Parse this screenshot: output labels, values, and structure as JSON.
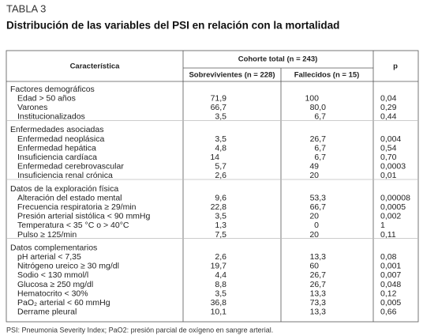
{
  "header": {
    "label": "TABLA 3",
    "title": "Distribución de las variables del PSI en relación con la mortalidad"
  },
  "table": {
    "columns": {
      "characteristic": "Característica",
      "cohort": "Cohorte total (n = 243)",
      "survivors": "Sobrevivientes (n = 228)",
      "deceased": "Fallecidos (n = 15)",
      "p": "p"
    },
    "groups": [
      {
        "name": "Factores demográficos",
        "rows": [
          [
            "Edad > 50 años",
            "71,9",
            "100",
            "0,04"
          ],
          [
            "Varones",
            "66,7",
            "80,0",
            "0,29"
          ],
          [
            "Institucionalizados",
            "3,5",
            "6,7",
            "0,44"
          ]
        ]
      },
      {
        "name": "Enfermedades asociadas",
        "rows": [
          [
            "Enfermedad neoplásica",
            "3,5",
            "26,7",
            "0,004"
          ],
          [
            "Enfermedad hepática",
            "4,8",
            "6,7",
            "0,54"
          ],
          [
            "Insuficiencia cardíaca",
            "14",
            "6,7",
            "0,70"
          ],
          [
            "Enfermedad cerebrovascular",
            "5,7",
            "49",
            "0,0003"
          ],
          [
            "Insuficiencia renal crónica",
            "2,6",
            "20",
            "0,01"
          ]
        ]
      },
      {
        "name": "Datos de la exploración física",
        "rows": [
          [
            "Alteración del estado mental",
            "9,6",
            "53,3",
            "0,00008"
          ],
          [
            "Frecuencia respiratoria ≥ 29/min",
            "22,8",
            "66,7",
            "0,0005"
          ],
          [
            "Presión arterial sistólica < 90 mmHg",
            "3,5",
            "20",
            "0,002"
          ],
          [
            "Temperatura < 35 °C o > 40°C",
            "1,3",
            "0",
            "1"
          ],
          [
            "Pulso ≥ 125/min",
            "7,5",
            "20",
            "0,11"
          ]
        ]
      },
      {
        "name": "Datos complementarios",
        "rows": [
          [
            "pH arterial < 7,35",
            "2,6",
            "13,3",
            "0,08"
          ],
          [
            "Nitrógeno ureico ≥ 30 mg/dl",
            "19,7",
            "60",
            "0,001"
          ],
          [
            "Sodio < 130 mmol/l",
            "4,4",
            "26,7",
            "0,007"
          ],
          [
            "Glucosa ≥ 250 mg/dl",
            "8,8",
            "26,7",
            "0,048"
          ],
          [
            "Hematocrito < 30%",
            "3,5",
            "13,3",
            "0,12"
          ],
          [
            "PaO₂ arterial < 60 mmHg",
            "36,8",
            "73,3",
            "0,005"
          ],
          [
            "Derrame pleural",
            "10,1",
            "13,3",
            "0,66"
          ]
        ]
      }
    ]
  },
  "footnote": "PSI: Pneumonia Severity Index; PaO2: presión parcial de oxígeno en sangre arterial."
}
